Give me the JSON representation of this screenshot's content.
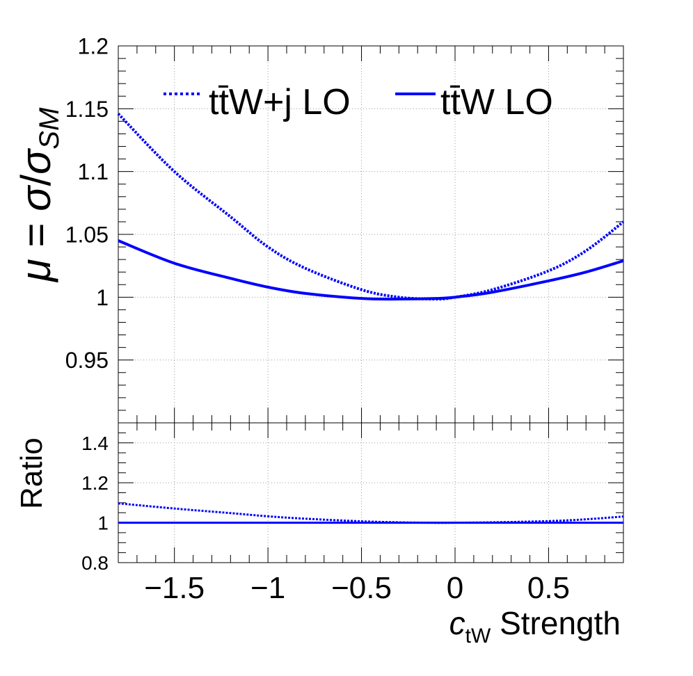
{
  "chart_data": [
    {
      "type": "line",
      "panel": "main",
      "ylabel": {
        "mu": "μ",
        "eq": " = ",
        "sigma": "σ",
        "slash": "/",
        "sigma2": "σ",
        "sub": "SM"
      },
      "xlim": [
        -1.8,
        0.9
      ],
      "ylim": [
        0.9,
        1.2
      ],
      "yticks": [
        0.95,
        1,
        1.05,
        1.1,
        1.15,
        1.2
      ],
      "ytick_labels": [
        "0.95",
        "1",
        "1.05",
        "1.1",
        "1.15",
        "1.2"
      ],
      "grid": true,
      "legend_position": "top",
      "series": [
        {
          "name": "tt̄W+j LO",
          "style": "dotted",
          "color": "#0000ff",
          "x": [
            -1.8,
            -1.5,
            -1.2,
            -1.0,
            -0.8,
            -0.5,
            -0.3,
            -0.1,
            0.0,
            0.2,
            0.5,
            0.7,
            0.9
          ],
          "y": [
            1.146,
            1.1,
            1.064,
            1.04,
            1.023,
            1.006,
            1.0,
            0.9985,
            1.0,
            1.006,
            1.021,
            1.037,
            1.06
          ]
        },
        {
          "name": "tt̄W LO",
          "style": "solid",
          "color": "#0000ff",
          "x": [
            -1.8,
            -1.5,
            -1.2,
            -1.0,
            -0.8,
            -0.5,
            -0.3,
            -0.1,
            0.0,
            0.2,
            0.5,
            0.7,
            0.9
          ],
          "y": [
            1.045,
            1.027,
            1.015,
            1.008,
            1.003,
            0.999,
            0.9985,
            0.999,
            1.0,
            1.004,
            1.013,
            1.02,
            1.029
          ]
        }
      ]
    },
    {
      "type": "line",
      "panel": "ratio",
      "ylabel": "Ratio",
      "xlabel": {
        "c": "c",
        "sub": "tW",
        "rest": " Strength"
      },
      "xlim": [
        -1.8,
        0.9
      ],
      "ylim": [
        0.8,
        1.5
      ],
      "xticks": [
        -1.5,
        -1,
        -0.5,
        0,
        0.5
      ],
      "xtick_labels": [
        "−1.5",
        "−1",
        "−0.5",
        "0",
        "0.5"
      ],
      "yticks": [
        0.8,
        1,
        1.2,
        1.4
      ],
      "ytick_labels": [
        "0.8",
        "1",
        "1.2",
        "1.4"
      ],
      "grid": true,
      "series": [
        {
          "style": "dotted",
          "color": "#0000ff",
          "x": [
            -1.8,
            -1.5,
            -1.2,
            -1.0,
            -0.8,
            -0.5,
            -0.3,
            -0.1,
            0.0,
            0.2,
            0.5,
            0.7,
            0.9
          ],
          "y": [
            1.097,
            1.071,
            1.048,
            1.032,
            1.02,
            1.007,
            1.002,
            0.9995,
            1.0,
            1.002,
            1.008,
            1.017,
            1.031
          ]
        },
        {
          "style": "solid",
          "color": "#0000ff",
          "x": [
            -1.8,
            0.9
          ],
          "y": [
            1.0,
            1.0
          ]
        }
      ]
    }
  ]
}
